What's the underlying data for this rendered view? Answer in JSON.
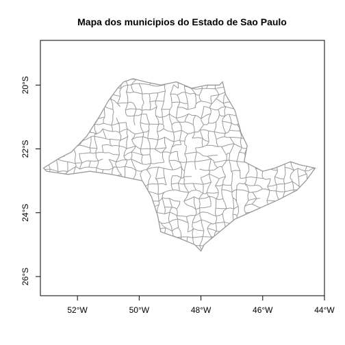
{
  "chart_data": {
    "type": "map",
    "title": "Mapa dos municipios do Estado de Sao Paulo",
    "x_axis": {
      "ticks": [
        -52,
        -50,
        -48,
        -46,
        -44
      ],
      "tick_labels": [
        "52°W",
        "50°W",
        "48°W",
        "46°W",
        "44°W"
      ],
      "range": [
        -53.2,
        -44.0
      ]
    },
    "y_axis": {
      "ticks": [
        -20,
        -22,
        -24,
        -26
      ],
      "tick_labels": [
        "20°S",
        "22°S",
        "24°S",
        "26°S"
      ],
      "range": [
        -26.6,
        -18.6
      ]
    },
    "boundary_color": "#999999",
    "state_outline": [
      [
        -53.1,
        -22.6
      ],
      [
        -52.6,
        -22.3
      ],
      [
        -52.2,
        -22.1
      ],
      [
        -51.7,
        -21.6
      ],
      [
        -51.3,
        -21.0
      ],
      [
        -51.0,
        -20.5
      ],
      [
        -50.7,
        -20.1
      ],
      [
        -50.5,
        -19.9
      ],
      [
        -50.2,
        -19.8
      ],
      [
        -49.8,
        -19.9
      ],
      [
        -49.3,
        -20.0
      ],
      [
        -48.8,
        -19.9
      ],
      [
        -48.3,
        -20.1
      ],
      [
        -47.8,
        -20.0
      ],
      [
        -47.4,
        -20.0
      ],
      [
        -47.3,
        -19.9
      ],
      [
        -47.2,
        -20.3
      ],
      [
        -46.9,
        -20.8
      ],
      [
        -46.7,
        -21.5
      ],
      [
        -46.5,
        -21.9
      ],
      [
        -46.6,
        -22.4
      ],
      [
        -46.0,
        -22.7
      ],
      [
        -45.6,
        -22.6
      ],
      [
        -45.1,
        -22.4
      ],
      [
        -44.8,
        -22.5
      ],
      [
        -44.3,
        -22.6
      ],
      [
        -44.6,
        -23.0
      ],
      [
        -44.9,
        -23.3
      ],
      [
        -45.5,
        -23.6
      ],
      [
        -46.2,
        -23.9
      ],
      [
        -46.9,
        -24.2
      ],
      [
        -47.4,
        -24.6
      ],
      [
        -47.9,
        -25.0
      ],
      [
        -48.0,
        -25.2
      ],
      [
        -48.2,
        -25.0
      ],
      [
        -48.7,
        -24.8
      ],
      [
        -49.3,
        -24.6
      ],
      [
        -49.4,
        -24.1
      ],
      [
        -49.6,
        -23.5
      ],
      [
        -49.9,
        -23.0
      ],
      [
        -50.4,
        -22.9
      ],
      [
        -50.9,
        -22.8
      ],
      [
        -51.6,
        -22.7
      ],
      [
        -52.3,
        -22.8
      ],
      [
        -53.0,
        -22.7
      ]
    ]
  }
}
